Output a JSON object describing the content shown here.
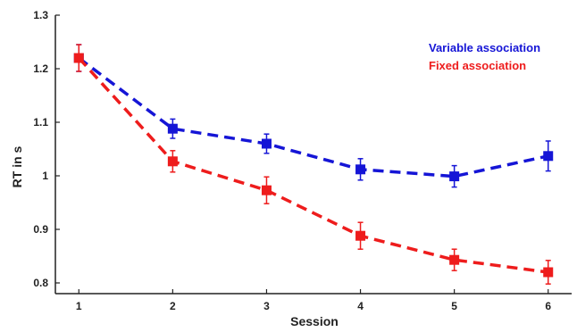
{
  "chart_data": {
    "type": "line",
    "xlabel": "Session",
    "ylabel": "RT in s",
    "x": [
      1,
      2,
      3,
      4,
      5,
      6
    ],
    "xlim": [
      0.75,
      6.25
    ],
    "ylim": [
      0.78,
      1.3
    ],
    "x_ticks": [
      "1",
      "2",
      "3",
      "4",
      "5",
      "6"
    ],
    "y_ticks": [
      {
        "value": 1.3,
        "label": "1.3"
      },
      {
        "value": 1.2,
        "label": "1.2"
      },
      {
        "value": 1.1,
        "label": "1.1"
      },
      {
        "value": 1.0,
        "label": "1"
      },
      {
        "value": 0.9,
        "label": "0.9"
      },
      {
        "value": 0.8,
        "label": "0.8"
      }
    ],
    "grid": false,
    "legend_position": "top-right",
    "series": [
      {
        "name": "Variable association",
        "color": "#1515d6",
        "line_style": "dashed",
        "marker": "square",
        "values": [
          1.22,
          1.088,
          1.06,
          1.012,
          0.999,
          1.037
        ],
        "error": [
          0.025,
          0.018,
          0.018,
          0.02,
          0.02,
          0.028
        ]
      },
      {
        "name": "Fixed association",
        "color": "#ee1c1c",
        "line_style": "dashed",
        "marker": "square",
        "values": [
          1.22,
          1.027,
          0.973,
          0.888,
          0.843,
          0.82
        ],
        "error": [
          0.025,
          0.02,
          0.025,
          0.025,
          0.02,
          0.022
        ]
      }
    ]
  }
}
